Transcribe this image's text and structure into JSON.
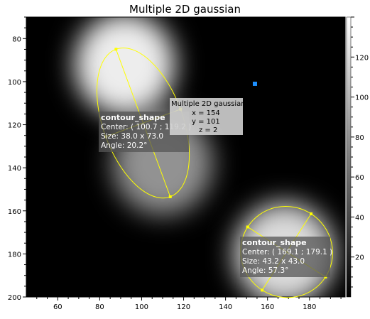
{
  "title": "Multiple 2D gaussian",
  "chart_data": {
    "type": "heatmap",
    "title": "Multiple 2D gaussian",
    "xlim": [
      45,
      197
    ],
    "ylim": [
      200,
      70
    ],
    "zlim": [
      0,
      140
    ],
    "colormap": "grayscale",
    "x_ticks": [
      "60",
      "80",
      "100",
      "120",
      "140",
      "160",
      "180"
    ],
    "y_ticks": [
      "80",
      "100",
      "120",
      "140",
      "160",
      "180",
      "200"
    ],
    "colorbar_ticks": [
      "20",
      "40",
      "60",
      "80",
      "100",
      "120"
    ],
    "gaussians": [
      {
        "cx": 92,
        "cy": 92,
        "amplitude": 130
      },
      {
        "cx": 110,
        "cy": 138,
        "amplitude": 80
      },
      {
        "cx": 168,
        "cy": 180,
        "amplitude": 120
      }
    ],
    "shapes": [
      {
        "label_title": "contour_shape",
        "center_text": "Center: ( 100.7 ; 119.2 )",
        "size_text": "Size: 38.0 x 73.0",
        "angle_text": "Angle: 20.2°",
        "center": [
          100.7,
          119.2
        ],
        "width": 38.0,
        "height": 73.0,
        "angle": 20.2
      },
      {
        "label_title": "contour_shape",
        "center_text": "Center: ( 169.1 ; 179.1 )",
        "size_text": "Size: 43.2 x 43.0",
        "angle_text": "Angle: 57.3°",
        "center": [
          169.1,
          179.1
        ],
        "width": 43.2,
        "height": 43.0,
        "angle": 57.3
      }
    ],
    "cursor": {
      "title": "Multiple 2D gaussian:",
      "x_text": "x = 154",
      "y_text": "y = 101",
      "z_text": "z = 2",
      "x": 154,
      "y": 101
    }
  },
  "colors": {
    "contour": "#ffff00",
    "cursor_marker": "#1e90ff",
    "label_bg": "#555555",
    "cursor_bg": "#d0d0d0"
  }
}
